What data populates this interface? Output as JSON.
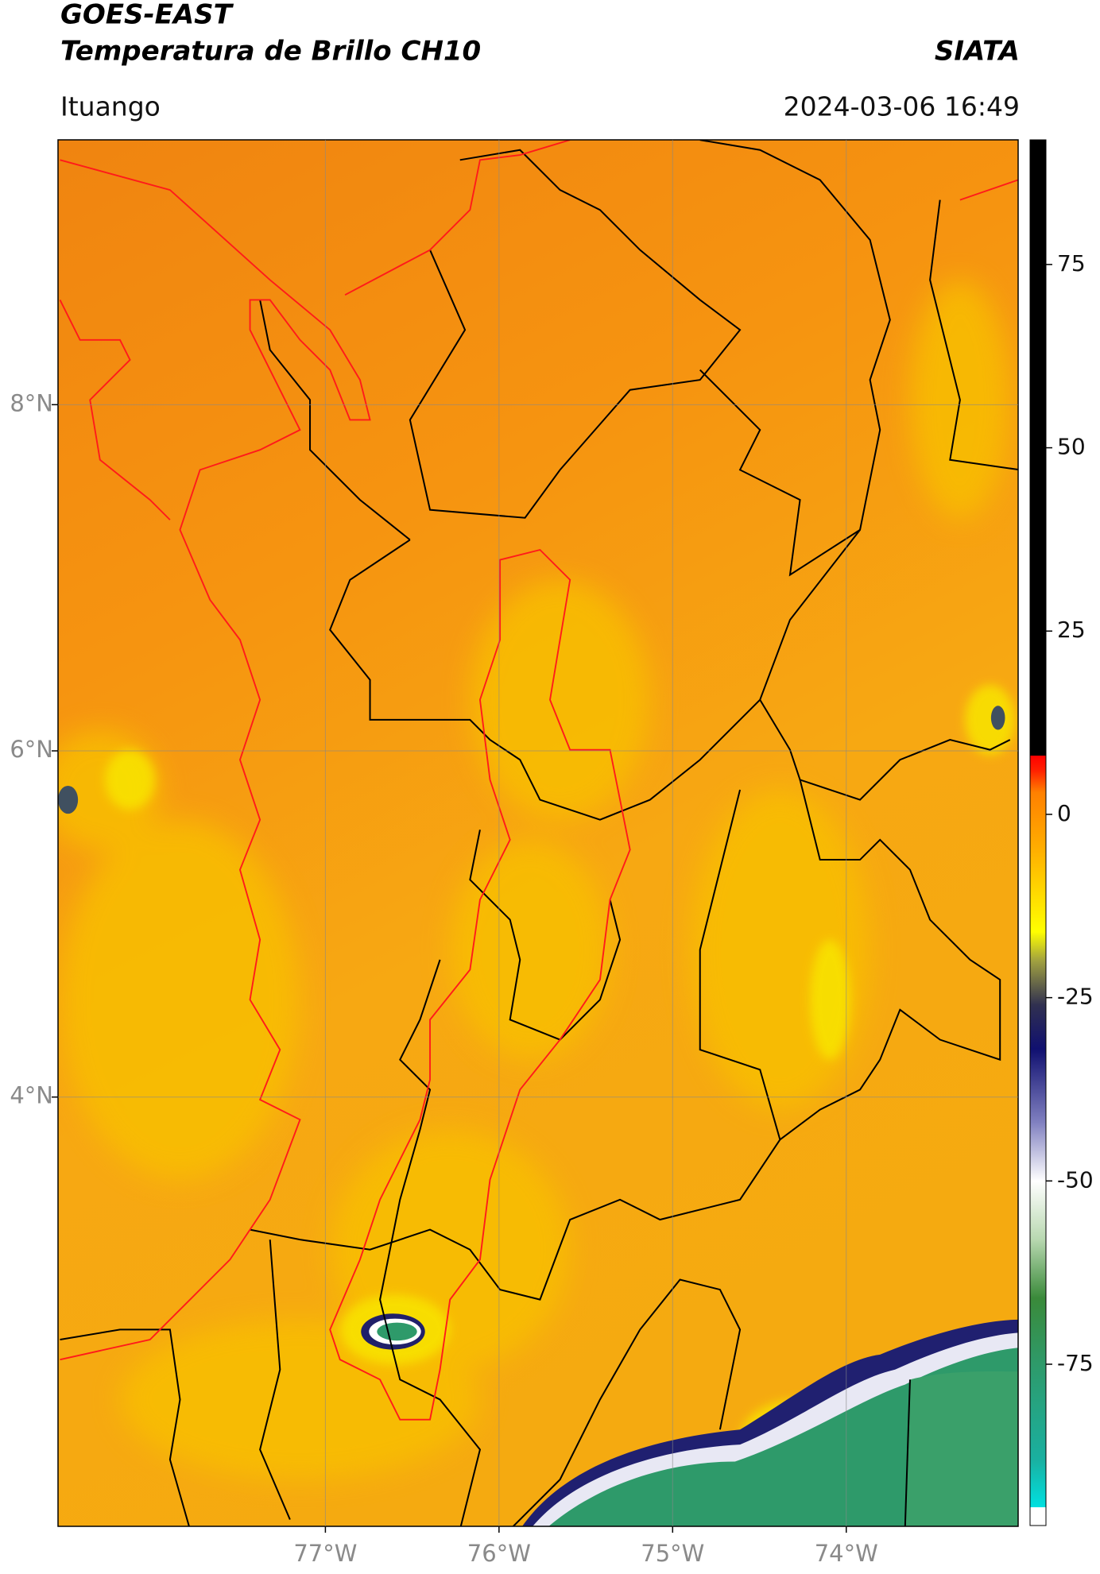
{
  "header": {
    "title": "GOES-EAST",
    "subtitle": "Temperatura de Brillo CH10",
    "source": "SIATA",
    "location": "Ituango",
    "datetime": "2024-03-06 16:49"
  },
  "map": {
    "xlim": [
      -78.54,
      -73.01
    ],
    "ylim": [
      1.52,
      9.53
    ],
    "xticks": [
      {
        "value": -77,
        "label": "77°W"
      },
      {
        "value": -76,
        "label": "76°W"
      },
      {
        "value": -75,
        "label": "75°W"
      },
      {
        "value": -74,
        "label": "74°W"
      }
    ],
    "yticks": [
      {
        "value": 4,
        "label": "4°N"
      },
      {
        "value": 6,
        "label": "6°N"
      },
      {
        "value": 8,
        "label": "8°N"
      }
    ],
    "grid": true
  },
  "colorbar": {
    "lim": [
      -97,
      92
    ],
    "ticks": [
      -75,
      -50,
      -25,
      0,
      25,
      50,
      75
    ],
    "colormap": [
      [
        -97,
        "#ffffff"
      ],
      [
        -94.5,
        "#ffffff"
      ],
      [
        -94.5,
        "#00e0e0"
      ],
      [
        -88,
        "#1ab0a0"
      ],
      [
        -75,
        "#2e9a6a"
      ],
      [
        -66,
        "#3a8a3a"
      ],
      [
        -58,
        "#b8d8b0"
      ],
      [
        -50,
        "#ffffff"
      ],
      [
        -42,
        "#8080c0"
      ],
      [
        -32,
        "#101070"
      ],
      [
        -26,
        "#303050"
      ],
      [
        -20,
        "#a0a040"
      ],
      [
        -16,
        "#ffff00"
      ],
      [
        -5,
        "#ffb000"
      ],
      [
        3,
        "#ff8000"
      ],
      [
        6,
        "#ff2000"
      ],
      [
        8,
        "#ff0000"
      ],
      [
        8,
        "#000000"
      ],
      [
        92,
        "#000000"
      ]
    ]
  }
}
